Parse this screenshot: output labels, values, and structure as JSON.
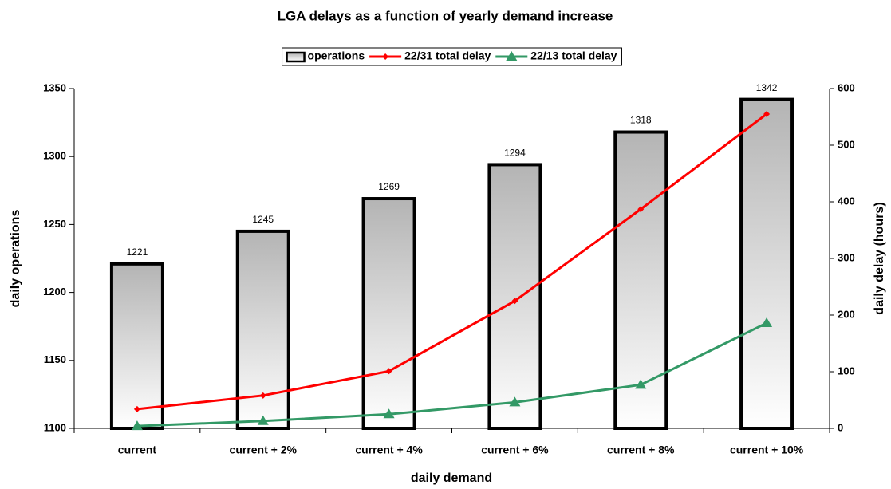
{
  "chart_data": {
    "type": "combo",
    "title": "LGA delays as a function of yearly demand increase",
    "x_label": "daily demand",
    "y_label": "daily operations",
    "y2_label": "daily delay (hours)",
    "categories": [
      "current",
      "current + 2%",
      "current + 4%",
      "current + 6%",
      "current + 8%",
      "current + 10%"
    ],
    "ylim": [
      1100,
      1350
    ],
    "yticks": [
      1100,
      1150,
      1200,
      1250,
      1300,
      1350
    ],
    "y2lim": [
      0,
      600
    ],
    "y2ticks": [
      0,
      100,
      200,
      300,
      400,
      500,
      600
    ],
    "legend": "top",
    "series": [
      {
        "name": "operations",
        "type": "bar",
        "color": "#000000",
        "values": [
          1221,
          1245,
          1269,
          1294,
          1318,
          1342
        ]
      },
      {
        "name": "22/31 total delay",
        "type": "line",
        "marker": "diamond",
        "axis": "y2",
        "color": "#ff0000",
        "values": [
          34,
          58,
          101,
          225,
          387,
          555
        ]
      },
      {
        "name": "22/13 total delay",
        "type": "line",
        "marker": "triangle",
        "axis": "y2",
        "color": "#339966",
        "values": [
          4,
          13,
          25,
          46,
          77,
          186
        ]
      }
    ]
  }
}
